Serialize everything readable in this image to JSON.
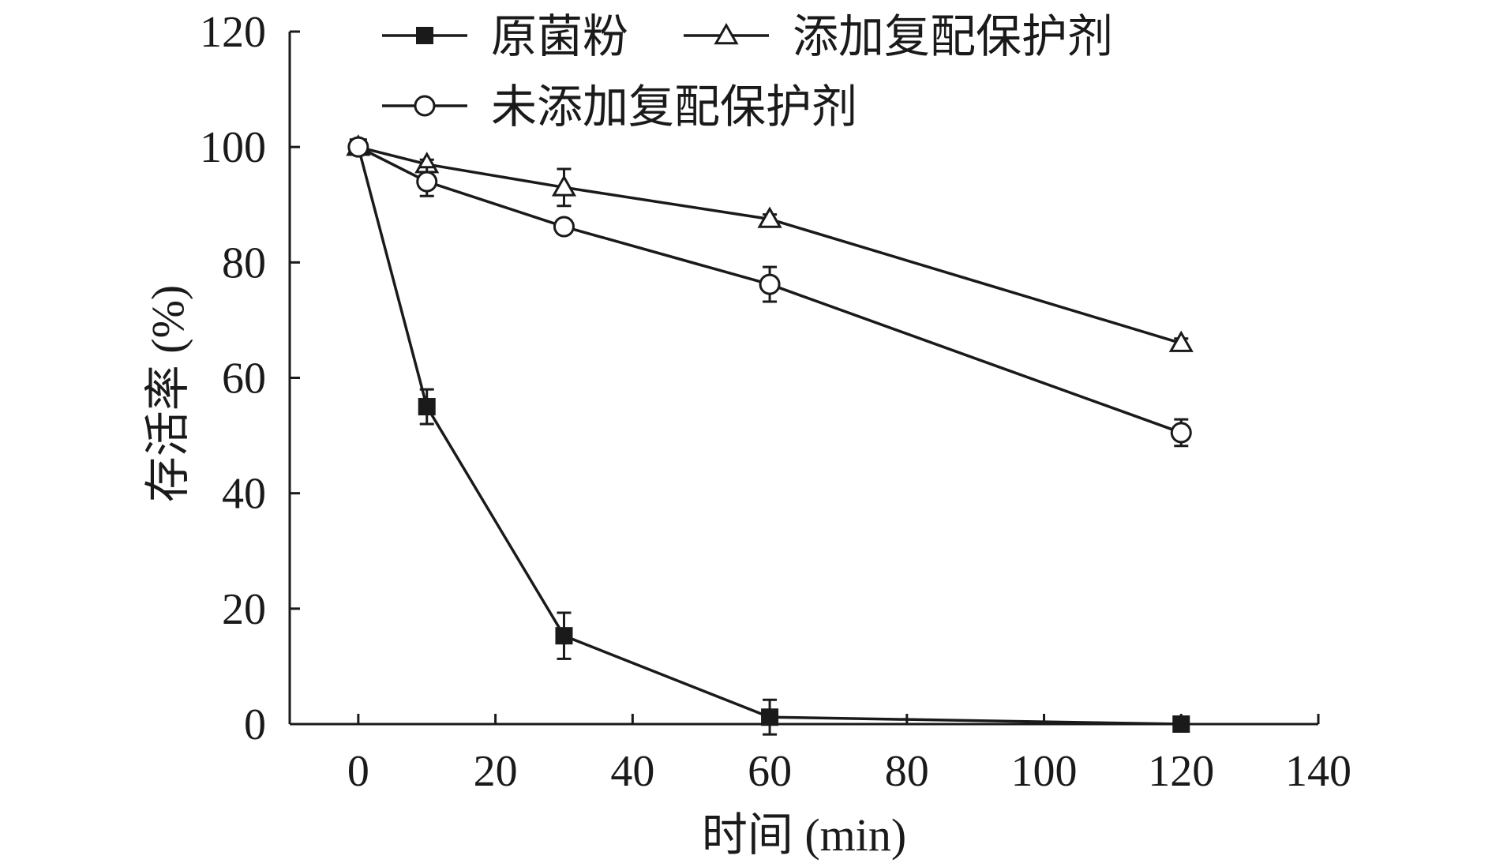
{
  "chart_data": {
    "type": "line",
    "title": "",
    "xlabel": "时间 (min)",
    "ylabel": "存活率 (%)",
    "xlim": [
      -10,
      140
    ],
    "ylim": [
      0,
      120
    ],
    "x_ticks": [
      0,
      20,
      40,
      60,
      80,
      100,
      120,
      140
    ],
    "y_ticks": [
      0,
      20,
      40,
      60,
      80,
      100,
      120
    ],
    "x_tick_labels": [
      "0",
      "20",
      "40",
      "60",
      "80",
      "100",
      "120",
      "140"
    ],
    "y_tick_labels": [
      "0",
      "20",
      "40",
      "60",
      "80",
      "100",
      "120"
    ],
    "grid": false,
    "legend_position": "top",
    "series": [
      {
        "name": "原菌粉",
        "marker": "filled-square",
        "x": [
          0,
          10,
          30,
          60,
          120
        ],
        "values": [
          100,
          55,
          15.3,
          1.2,
          0
        ],
        "error": [
          0,
          3,
          4,
          3,
          0
        ]
      },
      {
        "name": "添加复配保护剂",
        "marker": "open-triangle",
        "x": [
          0,
          10,
          30,
          60,
          120
        ],
        "values": [
          100,
          97,
          93,
          87.5,
          66
        ],
        "error": [
          0,
          0.8,
          3.2,
          0.8,
          0.8
        ]
      },
      {
        "name": "未添加复配保护剂",
        "marker": "open-circle",
        "x": [
          0,
          10,
          30,
          60,
          120
        ],
        "values": [
          100,
          94,
          86.2,
          76.2,
          50.5
        ],
        "error": [
          0,
          2.5,
          1.2,
          3,
          2.3
        ]
      }
    ],
    "colors": {
      "line": "#1a1a1a",
      "background": "#ffffff"
    }
  }
}
